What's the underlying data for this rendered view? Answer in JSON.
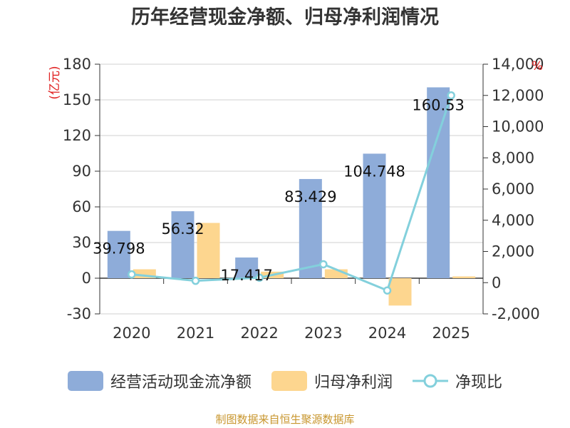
{
  "title": "历年经营现金净额、归母净利润情况",
  "footer": "制图数据来自恒生聚源数据库",
  "colors": {
    "cash_flow": "#8eacd9",
    "net_profit": "#fdd68f",
    "ratio": "#83d0dc",
    "unit": "#e02020"
  },
  "chart_data": {
    "type": "bar",
    "title": "历年经营现金净额、归母净利润情况",
    "categories": [
      "2020",
      "2021",
      "2022",
      "2023",
      "2024",
      "2025"
    ],
    "left_axis": {
      "unit_label": "(亿元)",
      "range": [
        -30,
        180
      ],
      "ticks": [
        -30,
        0,
        30,
        60,
        90,
        120,
        150,
        180
      ]
    },
    "right_axis": {
      "unit_label": "%",
      "range": [
        -2000,
        14000
      ],
      "ticks": [
        -2000,
        0,
        2000,
        4000,
        6000,
        8000,
        10000,
        12000,
        14000
      ]
    },
    "series": [
      {
        "name": "经营活动现金流净额",
        "type": "bar",
        "axis": "left",
        "values": [
          39.798,
          56.32,
          17.417,
          83.429,
          104.748,
          160.53
        ],
        "labels": [
          "39.798",
          "56.32",
          "17.417",
          "83.429",
          "104.748",
          "160.53"
        ]
      },
      {
        "name": "归母净利润",
        "type": "bar",
        "axis": "left",
        "values": [
          7.5,
          46.5,
          5.5,
          7.5,
          -23,
          1.5
        ]
      },
      {
        "name": "净现比",
        "type": "line",
        "axis": "right",
        "values": [
          530,
          120,
          320,
          1180,
          -500,
          12000
        ]
      }
    ]
  }
}
